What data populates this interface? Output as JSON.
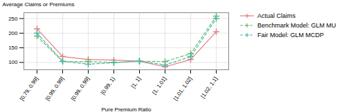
{
  "chart_data": {
    "type": "line",
    "categories": [
      "[0.79, 0.99]",
      "[0.99, 0.99]",
      "[0.99, 0.99]",
      "[0.99, 1)",
      "[1, 1]",
      "[1, 1.01]",
      "[1.01, 1.02]",
      "[1.02, 1.1]"
    ],
    "series": [
      {
        "name": "Actual Claims",
        "color": "#e08080",
        "line_style": "solid",
        "values": [
          215,
          120,
          110,
          108,
          104,
          85,
          110,
          205
        ]
      },
      {
        "name": "Benchmark Model: GLM MU",
        "color": "#66bb6a",
        "line_style": "dashed",
        "values": [
          190,
          103,
          103,
          100,
          104,
          103,
          130,
          258
        ]
      },
      {
        "name": "Fair Model: GLM MCDP",
        "color": "#4db6ac",
        "line_style": "dashed",
        "values": [
          200,
          104,
          94,
          99,
          105,
          91,
          120,
          250
        ]
      }
    ],
    "marker": "plus",
    "xlabel": "Pure Premium Ratio",
    "ylabel": "Average Claims or Premiums",
    "ylim": [
      75,
      270
    ],
    "yticks": [
      100,
      150,
      200,
      250
    ],
    "grid": true,
    "legend": "right"
  }
}
